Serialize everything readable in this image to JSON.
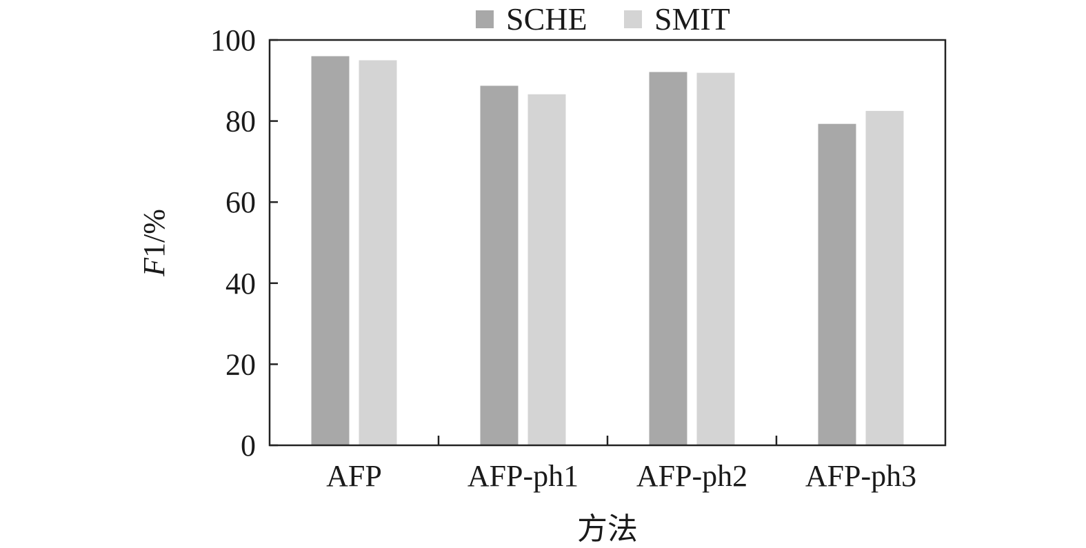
{
  "chart_data": {
    "type": "bar",
    "categories": [
      "AFP",
      "AFP-ph1",
      "AFP-ph2",
      "AFP-ph3"
    ],
    "series": [
      {
        "name": "SCHE",
        "values": [
          96.0,
          88.7,
          92.1,
          79.3
        ],
        "color": "#a8a8a8"
      },
      {
        "name": "SMIT",
        "values": [
          95.0,
          86.6,
          91.9,
          82.5
        ],
        "color": "#d4d4d4"
      }
    ],
    "ylabel_italic": "F",
    "ylabel_rest": "1/%",
    "xlabel": "方法",
    "ylim": [
      0,
      100
    ],
    "yticks": [
      "0",
      "20",
      "40",
      "60",
      "80",
      "100"
    ],
    "legend_position": "top-center",
    "grid": false
  }
}
